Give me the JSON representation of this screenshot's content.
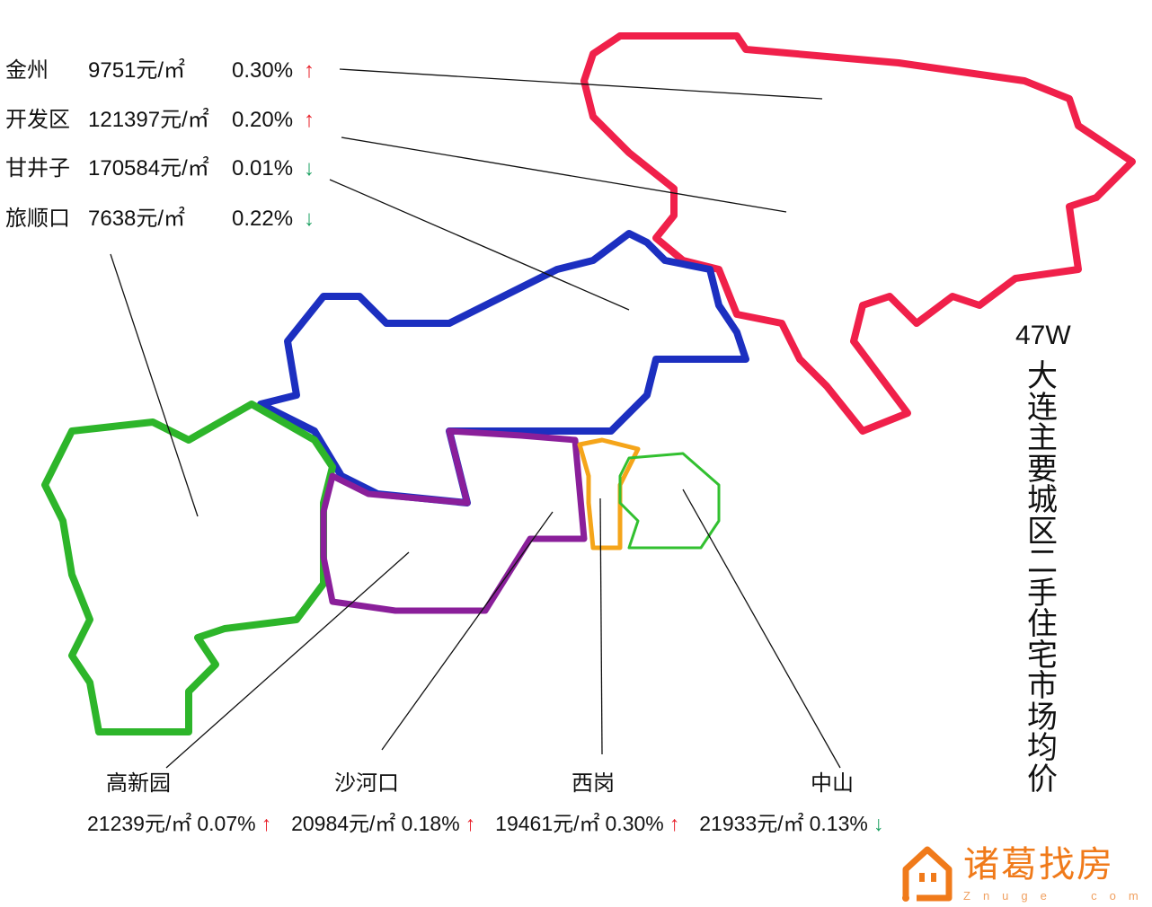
{
  "title": "大连主要城区二手住宅市场均价",
  "total": "47W",
  "colors": {
    "up": "#e8202a",
    "down": "#1aa060",
    "jinzhou": "#f0204a",
    "ganjingzi": "#1c2fc0",
    "gaoxinyuan": "#2db52a",
    "shahekou": "#8a1f9a",
    "xigang": "#f5a51a",
    "zhongshan": "#32c030",
    "logo": "#f07a1a"
  },
  "top_districts": [
    {
      "name": "金州",
      "price": "9751元/㎡",
      "change": "0.30%",
      "arrow": "↑",
      "trend": "up"
    },
    {
      "name": "开发区",
      "price": "121397元/㎡",
      "change": "0.20%",
      "arrow": "↑",
      "trend": "up"
    },
    {
      "name": "甘井子",
      "price": "170584元/㎡",
      "change": "0.01%",
      "arrow": "↓",
      "trend": "down"
    },
    {
      "name": "旅顺口",
      "price": "7638元/㎡",
      "change": "0.22%",
      "arrow": "↓",
      "trend": "down"
    }
  ],
  "bottom_districts": [
    {
      "name": "高新园",
      "price": "21239元/㎡",
      "change": "0.07%",
      "arrow": "↑",
      "trend": "up"
    },
    {
      "name": "沙河口",
      "price": "20984元/㎡",
      "change": "0.18%",
      "arrow": "↑",
      "trend": "up"
    },
    {
      "name": "西岗",
      "price": "19461元/㎡",
      "change": "0.30%",
      "arrow": "↑",
      "trend": "up"
    },
    {
      "name": "中山",
      "price": "21933元/㎡",
      "change": "0.13%",
      "arrow": "↓",
      "trend": "down"
    }
  ],
  "logo": {
    "name": "诸葛找房",
    "sub": "Znuge  com",
    "icon": "house-icon"
  }
}
